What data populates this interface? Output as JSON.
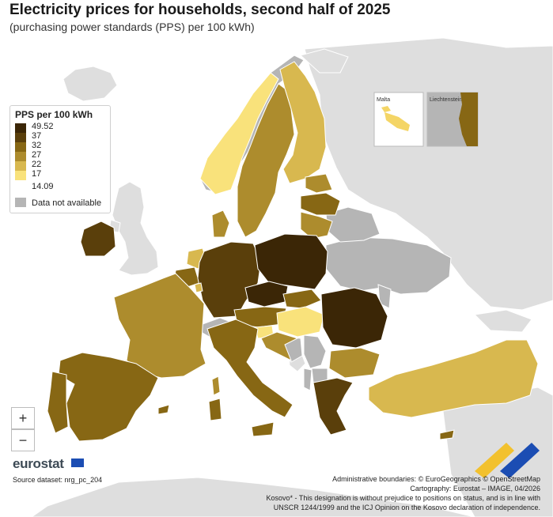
{
  "title": "Electricity prices for households, second half of 2025",
  "subtitle": "(purchasing power standards (PPS) per 100 kWh)",
  "legend": {
    "title": "PPS per 100 kWh",
    "max_label": "49.52",
    "breaks": [
      "37",
      "32",
      "27",
      "22",
      "17"
    ],
    "min_label": "14.09",
    "na_label": "Data not available",
    "classes": [
      {
        "from": 37,
        "to": 49.52,
        "color": "#3b2606"
      },
      {
        "from": 32,
        "to": 37,
        "color": "#5a3f0b"
      },
      {
        "from": 27,
        "to": 32,
        "color": "#876714"
      },
      {
        "from": 22,
        "to": 27,
        "color": "#ad8c2d"
      },
      {
        "from": 17,
        "to": 22,
        "color": "#d8b84f"
      },
      {
        "from": 14.09,
        "to": 17,
        "color": "#f9e27b"
      }
    ],
    "na_color": "#b5b5b5"
  },
  "insets": {
    "malta": "Malta",
    "liechtenstein": "Liechtenstein"
  },
  "zoom": {
    "in": "+",
    "out": "−"
  },
  "logo_text": "eurostat",
  "source": "Source dataset: nrg_pc_204",
  "notes": [
    "Administrative boundaries: © EuroGeographics © OpenStreetMap",
    "Cartography: Eurostat – IMAGE, 04/2026",
    "Kosovo* - This designation is without prejudice to positions on status, and is in line with",
    "UNSCR 1244/1999 and the ICJ Opinion on the Kosovo declaration of independence."
  ],
  "colors": {
    "non_eu": "#dedede",
    "na": "#b5b5b5",
    "sea": "#ffffff"
  }
}
